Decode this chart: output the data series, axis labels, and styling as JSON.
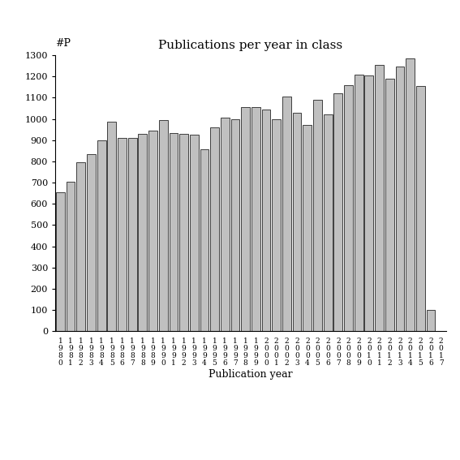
{
  "title": "Publications per year in class",
  "xlabel": "Publication year",
  "ylabel": "#P",
  "bar_color": "#c0c0c0",
  "bar_edge_color": "#000000",
  "background_color": "#ffffff",
  "ylim": [
    0,
    1300
  ],
  "yticks": [
    0,
    100,
    200,
    300,
    400,
    500,
    600,
    700,
    800,
    900,
    1000,
    1100,
    1200,
    1300
  ],
  "years": [
    "1\n9\n8\n0",
    "1\n9\n8\n1",
    "1\n9\n8\n2",
    "1\n9\n8\n3",
    "1\n9\n8\n4",
    "1\n9\n8\n5",
    "1\n9\n8\n6",
    "1\n9\n8\n7",
    "1\n9\n8\n8",
    "1\n9\n8\n9",
    "1\n9\n9\n0",
    "1\n9\n9\n1",
    "1\n9\n9\n2",
    "1\n9\n9\n3",
    "1\n9\n9\n4",
    "1\n9\n9\n5",
    "1\n9\n9\n6",
    "1\n9\n9\n7",
    "1\n9\n9\n8",
    "1\n9\n9\n9",
    "2\n0\n0\n0",
    "2\n0\n0\n1",
    "2\n0\n0\n2",
    "2\n0\n0\n3",
    "2\n0\n0\n4",
    "2\n0\n0\n5",
    "2\n0\n0\n6",
    "2\n0\n0\n7",
    "2\n0\n0\n8",
    "2\n0\n0\n9",
    "2\n0\n1\n0",
    "2\n0\n1\n1",
    "2\n0\n1\n2",
    "2\n0\n1\n3",
    "2\n0\n1\n4",
    "2\n0\n1\n5",
    "2\n0\n1\n6",
    "2\n0\n1\n7"
  ],
  "values": [
    655,
    705,
    795,
    835,
    900,
    985,
    910,
    910,
    930,
    945,
    995,
    935,
    930,
    925,
    855,
    960,
    1005,
    1000,
    1055,
    1055,
    1045,
    1000,
    1105,
    1030,
    970,
    1090,
    1020,
    1120,
    1160,
    1210,
    1205,
    1255,
    1190,
    1245,
    1285,
    1155,
    100,
    0
  ],
  "title_fontsize": 11,
  "tick_fontsize": 8,
  "xlabel_fontsize": 9,
  "bar_width": 0.85
}
